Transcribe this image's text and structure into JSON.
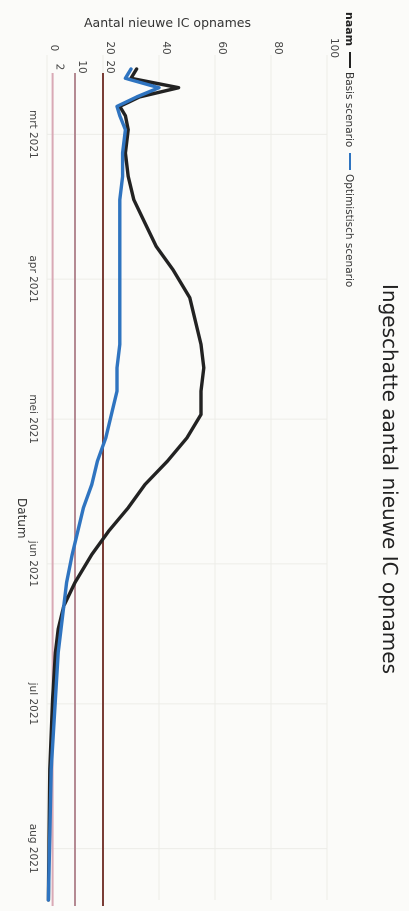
{
  "chart_data": {
    "type": "line",
    "title": "Ingeschatte aantal nieuwe IC opnames",
    "xlabel": "Datum",
    "ylabel": "Aantal nieuwe IC opnames",
    "ylim": [
      0,
      100
    ],
    "y_ticks": [
      "0",
      "20",
      "40",
      "60",
      "80",
      "100"
    ],
    "x_range": [
      "2021-02-12",
      "2021-08-12"
    ],
    "x_ticks": [
      {
        "date": "2021-03-01",
        "label": "mrt 2021"
      },
      {
        "date": "2021-04-01",
        "label": "apr 2021"
      },
      {
        "date": "2021-05-01",
        "label": "mei 2021"
      },
      {
        "date": "2021-06-01",
        "label": "jun 2021"
      },
      {
        "date": "2021-07-01",
        "label": "jul 2021"
      },
      {
        "date": "2021-08-01",
        "label": "aug 2021"
      }
    ],
    "grid": true,
    "legend": {
      "title": "naam",
      "placement": "top"
    },
    "series": [
      {
        "name": "Basis scenario",
        "color": "#222222",
        "points": [
          [
            "2021-02-15",
            32
          ],
          [
            "2021-02-17",
            30
          ],
          [
            "2021-02-19",
            47
          ],
          [
            "2021-02-21",
            33
          ],
          [
            "2021-02-23",
            26
          ],
          [
            "2021-02-25",
            28
          ],
          [
            "2021-02-28",
            29
          ],
          [
            "2021-03-05",
            28
          ],
          [
            "2021-03-10",
            29
          ],
          [
            "2021-03-15",
            31
          ],
          [
            "2021-03-20",
            35
          ],
          [
            "2021-03-25",
            39
          ],
          [
            "2021-03-30",
            45
          ],
          [
            "2021-04-05",
            51
          ],
          [
            "2021-04-10",
            53
          ],
          [
            "2021-04-15",
            55
          ],
          [
            "2021-04-20",
            56
          ],
          [
            "2021-04-25",
            55
          ],
          [
            "2021-04-30",
            55
          ],
          [
            "2021-05-05",
            50
          ],
          [
            "2021-05-10",
            43
          ],
          [
            "2021-05-15",
            35
          ],
          [
            "2021-05-20",
            29
          ],
          [
            "2021-05-25",
            22
          ],
          [
            "2021-05-30",
            16
          ],
          [
            "2021-06-05",
            10
          ],
          [
            "2021-06-10",
            6
          ],
          [
            "2021-06-15",
            4
          ],
          [
            "2021-06-20",
            3
          ],
          [
            "2021-06-30",
            2
          ],
          [
            "2021-07-15",
            1
          ],
          [
            "2021-08-12",
            0.5
          ]
        ]
      },
      {
        "name": "Optimistisch scenario",
        "color": "#2f74c0",
        "points": [
          [
            "2021-02-15",
            30
          ],
          [
            "2021-02-17",
            28
          ],
          [
            "2021-02-19",
            40
          ],
          [
            "2021-02-21",
            32
          ],
          [
            "2021-02-23",
            25
          ],
          [
            "2021-02-25",
            26
          ],
          [
            "2021-02-28",
            28
          ],
          [
            "2021-03-05",
            27
          ],
          [
            "2021-03-10",
            27
          ],
          [
            "2021-03-15",
            26
          ],
          [
            "2021-03-20",
            26
          ],
          [
            "2021-03-25",
            26
          ],
          [
            "2021-03-30",
            26
          ],
          [
            "2021-04-05",
            26
          ],
          [
            "2021-04-10",
            26
          ],
          [
            "2021-04-15",
            26
          ],
          [
            "2021-04-20",
            25
          ],
          [
            "2021-04-25",
            25
          ],
          [
            "2021-04-30",
            23
          ],
          [
            "2021-05-05",
            21
          ],
          [
            "2021-05-10",
            18
          ],
          [
            "2021-05-15",
            16
          ],
          [
            "2021-05-20",
            13
          ],
          [
            "2021-05-25",
            11
          ],
          [
            "2021-05-30",
            9
          ],
          [
            "2021-06-05",
            7
          ],
          [
            "2021-06-10",
            6
          ],
          [
            "2021-06-15",
            5
          ],
          [
            "2021-06-20",
            4
          ],
          [
            "2021-06-30",
            3
          ],
          [
            "2021-07-15",
            1.5
          ],
          [
            "2021-08-12",
            0.5
          ]
        ]
      }
    ],
    "reference_lines": [
      {
        "label": "2",
        "value": 2,
        "color": "#d9a9b6"
      },
      {
        "label": "10",
        "value": 10,
        "color": "#b48a93"
      },
      {
        "label": "20",
        "value": 20,
        "color": "#7a3d36"
      }
    ]
  }
}
